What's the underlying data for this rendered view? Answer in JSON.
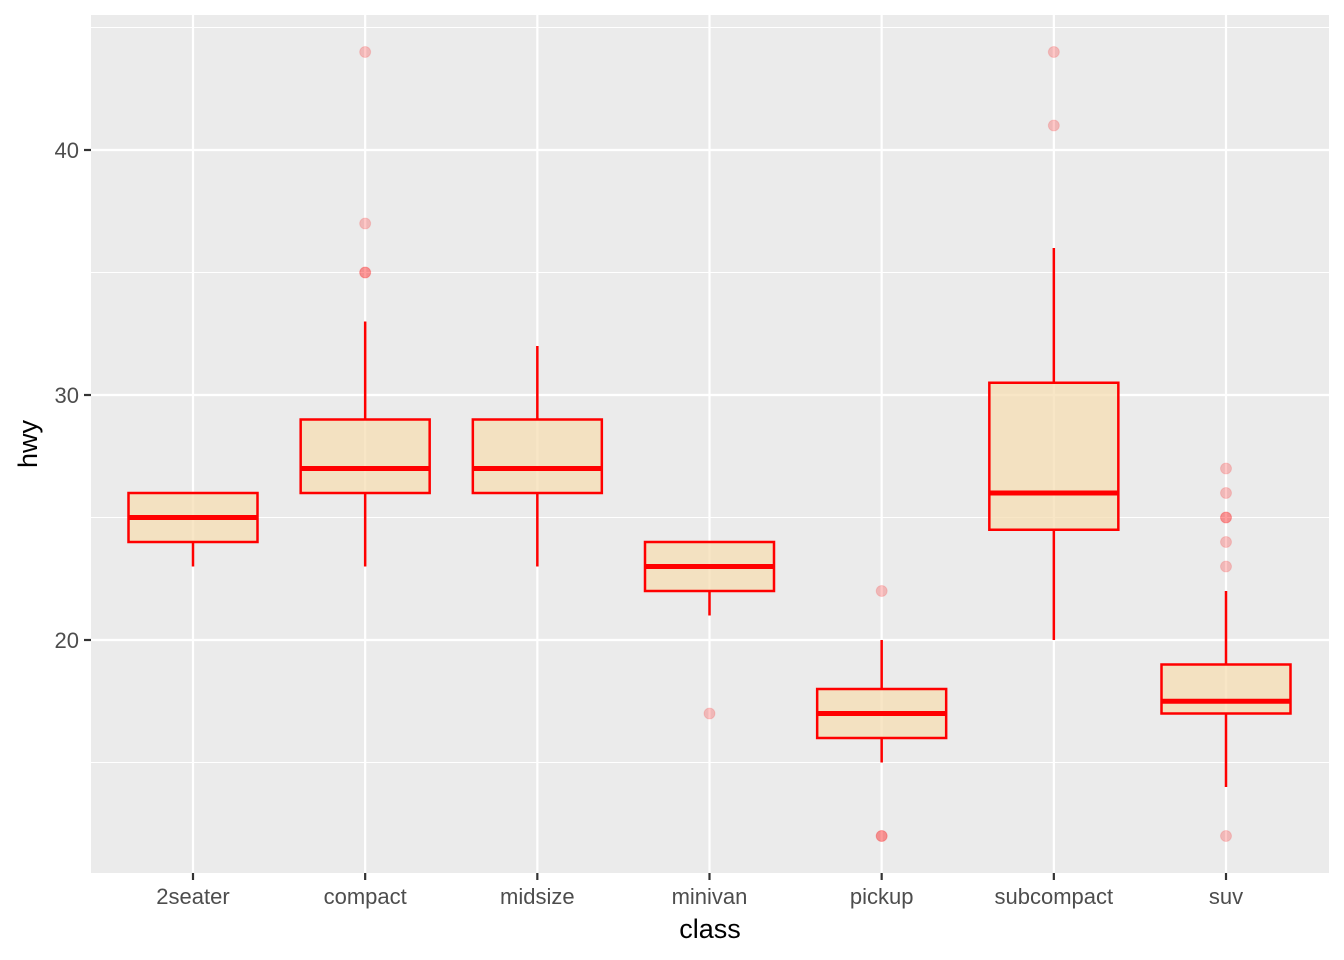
{
  "chart_data": {
    "type": "boxplot",
    "title": "",
    "xlabel": "class",
    "ylabel": "hwy",
    "ylim": [
      11,
      46
    ],
    "yticks": [
      20,
      30,
      40
    ],
    "y_minor_ticks": [
      15,
      25,
      35,
      45
    ],
    "grid": true,
    "legend": "none",
    "categories": [
      "2seater",
      "compact",
      "midsize",
      "minivan",
      "pickup",
      "subcompact",
      "suv"
    ],
    "boxes": [
      {
        "category": "2seater",
        "lower_whisker": 23,
        "q1": 24,
        "median": 25,
        "q3": 26,
        "upper_whisker": 26,
        "outliers": []
      },
      {
        "category": "compact",
        "lower_whisker": 23,
        "q1": 26,
        "median": 27,
        "q3": 29,
        "upper_whisker": 33,
        "outliers": [
          35,
          35,
          37,
          44
        ]
      },
      {
        "category": "midsize",
        "lower_whisker": 23,
        "q1": 26,
        "median": 27,
        "q3": 29,
        "upper_whisker": 32,
        "outliers": []
      },
      {
        "category": "minivan",
        "lower_whisker": 21,
        "q1": 22,
        "median": 23,
        "q3": 24,
        "upper_whisker": 24,
        "outliers": [
          17
        ]
      },
      {
        "category": "pickup",
        "lower_whisker": 15,
        "q1": 16,
        "median": 17,
        "q3": 18,
        "upper_whisker": 20,
        "outliers": [
          12,
          12,
          22
        ]
      },
      {
        "category": "subcompact",
        "lower_whisker": 20,
        "q1": 24.5,
        "median": 26,
        "q3": 30.5,
        "upper_whisker": 36,
        "outliers": [
          41,
          44
        ]
      },
      {
        "category": "suv",
        "lower_whisker": 14,
        "q1": 17,
        "median": 17.5,
        "q3": 19,
        "upper_whisker": 22,
        "outliers": [
          12,
          23,
          24,
          25,
          25,
          26,
          27
        ]
      }
    ],
    "colors": {
      "panel_background": "#ebebeb",
      "grid": "#ffffff",
      "box_fill": "#f5deb3",
      "box_outline": "#ff0000",
      "outlier": "#ff0000"
    }
  }
}
